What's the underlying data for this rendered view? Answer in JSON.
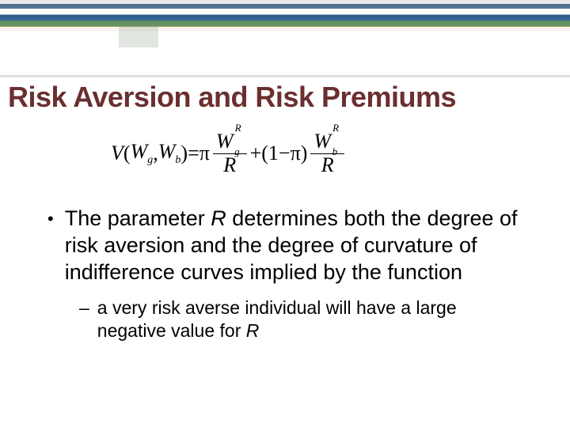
{
  "header": {
    "dots_pattern": ". . . . . . . . . . . . . . . . . . . . . . . . . . . . ."
  },
  "title": "Risk Aversion and Risk Premiums",
  "formula": {
    "lhs_V": "V",
    "lhs_open": "(",
    "lhs_W": "W",
    "lhs_sub_g": "g",
    "lhs_comma": ", ",
    "lhs_W2": "W",
    "lhs_sub_b": "b",
    "lhs_close": ")",
    "eq": " = ",
    "pi": "π",
    "frac1_num_W": "W",
    "frac1_num_sub": "g",
    "frac1_num_sup": "R",
    "frac1_den": "R",
    "plus": " + ",
    "oneminus_open": "(1",
    "minus": " − ",
    "pi2": "π",
    "oneminus_close": ")",
    "frac2_num_W": "W",
    "frac2_num_sub": "b",
    "frac2_num_sup": "R",
    "frac2_den": "R"
  },
  "bullets": {
    "main_pre": "The parameter ",
    "main_R": "R",
    "main_post": " determines both the degree of risk aversion and the degree of curvature of indifference curves implied by the function",
    "sub_pre": "a very risk averse individual will have a large negative value for ",
    "sub_R": "R"
  },
  "style": {
    "title_color": "#6b2f2f",
    "title_fontsize": 36,
    "body_fontsize": 27,
    "sub_fontsize": 23,
    "formula_fontsize": 26,
    "background": "#ffffff"
  }
}
